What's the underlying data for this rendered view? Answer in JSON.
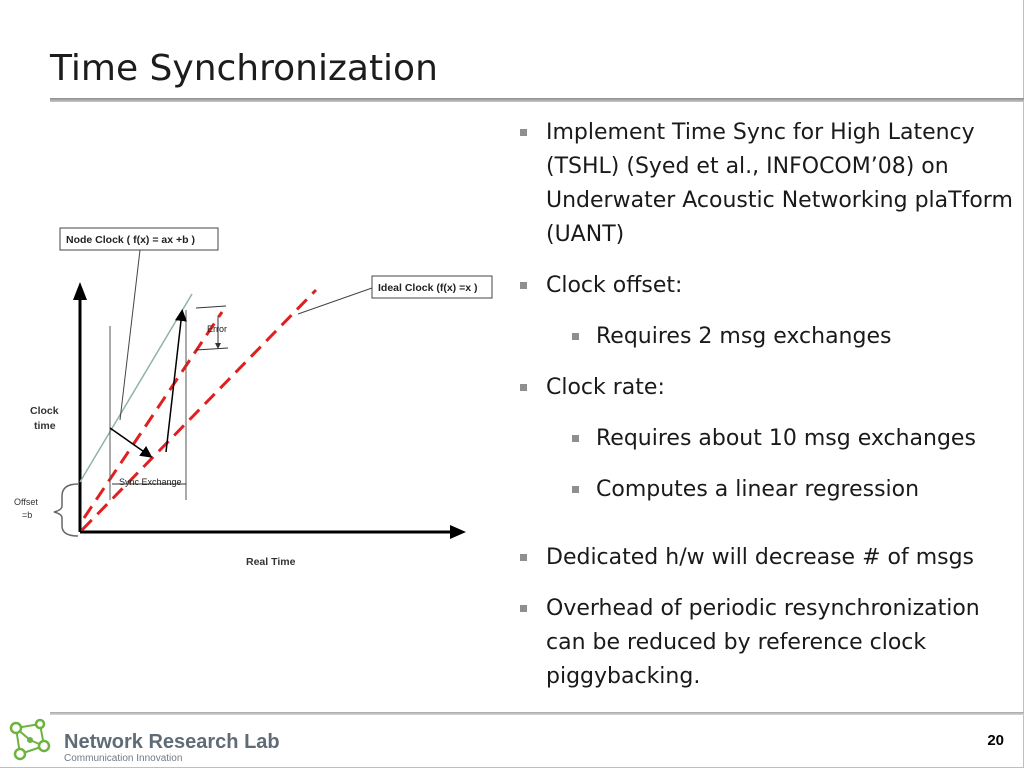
{
  "slide": {
    "title": "Time Synchronization",
    "page_number": "20"
  },
  "bullets": [
    {
      "level": 1,
      "text": "Implement Time Sync for High Latency (TSHL) (Syed et al., INFOCOM’08) on Underwater Acoustic Networking plaTform (UANT)"
    },
    {
      "level": 1,
      "text": "Clock offset:"
    },
    {
      "level": 2,
      "text": "Requires 2 msg exchanges"
    },
    {
      "level": 1,
      "text": "Clock rate:"
    },
    {
      "level": 2,
      "text": "Requires about  10 msg exchanges"
    },
    {
      "level": 2,
      "text": "Computes a linear regression"
    },
    {
      "level": 1,
      "text": "Dedicated h/w will decrease # of msgs"
    },
    {
      "level": 1,
      "text": "Overhead of periodic resynchronization can be reduced by reference clock piggybacking."
    }
  ],
  "diagram": {
    "node_clock_label": "Node Clock ( f(x) = ax +b )",
    "ideal_clock_label": "Ideal Clock (f(x) =x )",
    "error_label": "Error",
    "clock_time_label_1": "Clock",
    "clock_time_label_2": "time",
    "offset_label_1": "Offset",
    "offset_label_2": "=b",
    "sync_exchange_label": "Sync Exchange",
    "real_time_label": "Real Time"
  },
  "footer": {
    "lab_name": "Network Research Lab",
    "tagline": "Communication Innovation"
  },
  "colors": {
    "ideal_line": "#e02020",
    "node_line": "#8fb3aa",
    "logo_green": "#6db33f"
  }
}
